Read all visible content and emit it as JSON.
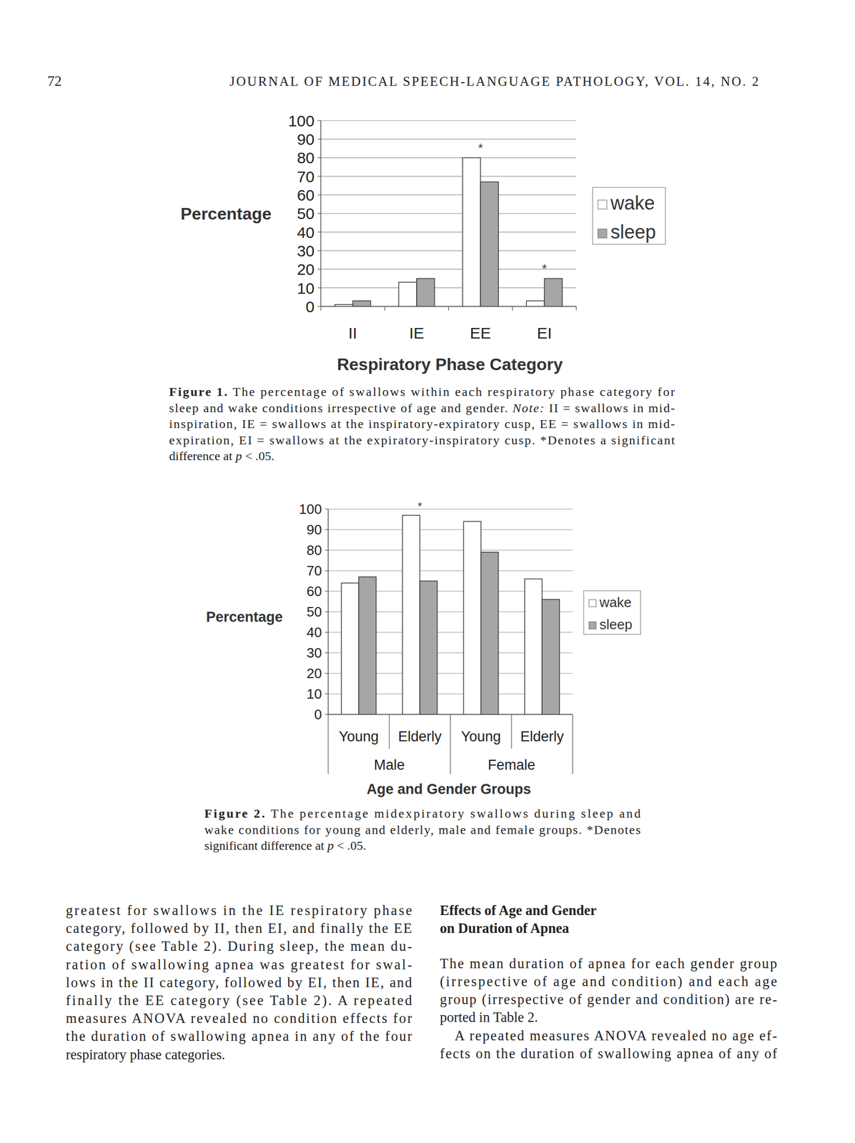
{
  "header": {
    "page": "72",
    "title": "JOURNAL OF MEDICAL SPEECH-LANGUAGE PATHOLOGY, VOL. 14, NO. 2"
  },
  "chart_data": [
    {
      "type": "bar",
      "y_label": "Percentage",
      "x_label": "Respiratory Phase Category",
      "categories": [
        "II",
        "IE",
        "EE",
        "EI"
      ],
      "series": [
        {
          "name": "wake",
          "color": "#ffffff",
          "values": [
            1,
            13,
            80,
            3
          ]
        },
        {
          "name": "sleep",
          "color": "#a6a6a6",
          "values": [
            3,
            15,
            67,
            15
          ]
        }
      ],
      "ylim": [
        0,
        100
      ],
      "yticks": [
        0,
        10,
        20,
        30,
        40,
        50,
        60,
        70,
        80,
        90,
        100
      ],
      "grid": true,
      "legend": "right",
      "annotations": [
        {
          "text": "*",
          "index": 2
        },
        {
          "text": "*",
          "index": 3
        }
      ]
    },
    {
      "type": "bar",
      "y_label": "Percentage",
      "x_label": "Age and Gender Groups",
      "categories": [
        "Young",
        "Elderly",
        "Young",
        "Elderly"
      ],
      "groups": [
        "Male",
        "Female"
      ],
      "series": [
        {
          "name": "wake",
          "color": "#ffffff",
          "values": [
            64,
            97,
            94,
            66
          ]
        },
        {
          "name": "sleep",
          "color": "#a6a6a6",
          "values": [
            67,
            65,
            79,
            56
          ]
        }
      ],
      "ylim": [
        0,
        100
      ],
      "yticks": [
        0,
        10,
        20,
        30,
        40,
        50,
        60,
        70,
        80,
        90,
        100
      ],
      "grid": true,
      "legend": "right",
      "annotations": [
        {
          "text": "*",
          "index": 1
        }
      ]
    }
  ],
  "captions": [
    {
      "lines": [
        [
          {
            "text": "Figure 1.",
            "style": "bold"
          },
          " The percentage of swallows within each respiratory phase category for"
        ],
        [
          "sleep and wake conditions irrespective of age and gender. ",
          {
            "text": "Note:",
            "style": "italic"
          },
          " II = swallows in mid-"
        ],
        [
          "inspiration, IE = swallows at the inspiratory-expiratory cusp, EE = swallows in mid-"
        ],
        [
          "expiration, EI = swallows at the expiratory-inspiratory cusp. *Denotes a significant"
        ],
        [
          "difference at ",
          {
            "text": "p",
            "style": "italic"
          },
          " < .05."
        ]
      ]
    },
    {
      "lines": [
        [
          {
            "text": "Figure 2.",
            "style": "bold"
          },
          " The percentage midexpiratory swallows during sleep and"
        ],
        [
          "wake conditions for young and elderly, male and female groups. *Denotes"
        ],
        [
          "significant difference at ",
          {
            "text": "p",
            "style": "italic"
          },
          " < .05."
        ]
      ]
    }
  ],
  "columns": [
    {
      "paragraphs": [
        {
          "lines": [
            "greatest for swallows in the IE respiratory phase",
            "category, followed by II, then EI, and finally the EE",
            "category (see Table 2). During sleep, the mean du-",
            "ration of swallowing apnea was greatest for swal-",
            "lows in the II category, followed by EI, then IE, and",
            "finally the EE category (see Table 2). A repeated",
            "measures ANOVA revealed no condition effects for",
            "the duration of swallowing apnea in any of the four",
            "respiratory phase categories."
          ]
        }
      ]
    },
    {
      "heading": [
        "Effects of Age and Gender",
        "on Duration of Apnea"
      ],
      "paragraphs": [
        {
          "lines": [
            "The mean duration of apnea for each gender group",
            "(irrespective of age and condition) and each age",
            "group (irrespective of gender and condition) are re-",
            "ported in Table 2."
          ]
        },
        {
          "lines": [
            "A repeated measures ANOVA revealed no age ef-",
            "fects on the duration of swallowing apnea of any of"
          ]
        }
      ]
    }
  ]
}
